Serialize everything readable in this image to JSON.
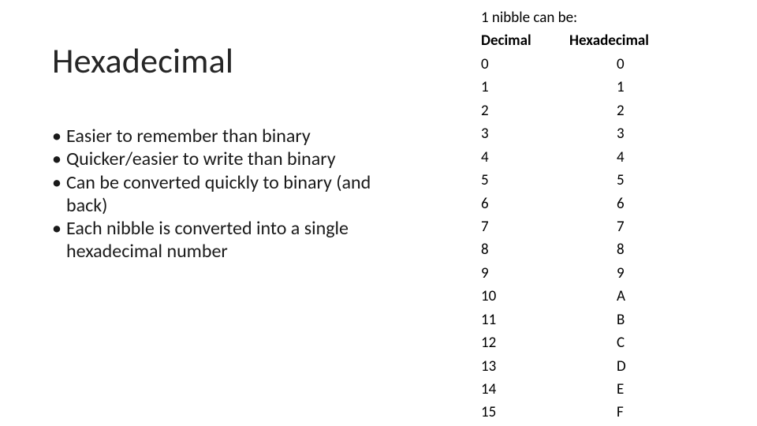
{
  "background_color": "#ffffff",
  "text_color": "#000000",
  "title_color": "#262626",
  "font_family": "Calibri",
  "title": {
    "text": "Hexadecimal",
    "fontsize": 44,
    "fontweight": 400
  },
  "bullets": {
    "fontsize": 24,
    "items": [
      "Easier to remember than binary",
      "Quicker/easier to write than binary",
      "Can be converted quickly to binary (and back)",
      "Each nibble is converted into a single hexadecimal number"
    ]
  },
  "table": {
    "type": "table",
    "intro": "1 nibble can be:",
    "fontsize": 19,
    "header_fontweight": 700,
    "columns": [
      "Decimal",
      "Hexadecimal"
    ],
    "rows": [
      [
        "0",
        "0"
      ],
      [
        "1",
        "1"
      ],
      [
        "2",
        "2"
      ],
      [
        "3",
        "3"
      ],
      [
        "4",
        "4"
      ],
      [
        "5",
        "5"
      ],
      [
        "6",
        "6"
      ],
      [
        "7",
        "7"
      ],
      [
        "8",
        "8"
      ],
      [
        "9",
        "9"
      ],
      [
        "10",
        "A"
      ],
      [
        "11",
        "B"
      ],
      [
        "12",
        "C"
      ],
      [
        "13",
        "D"
      ],
      [
        "14",
        "E"
      ],
      [
        "15",
        "F"
      ]
    ]
  }
}
